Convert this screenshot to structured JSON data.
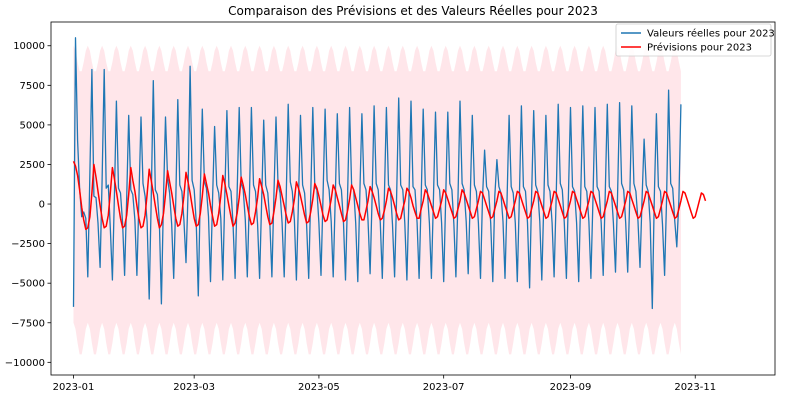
{
  "chart_data": {
    "type": "line",
    "title": "Comparaison des Prévisions et des Valeurs Réelles pour 2023",
    "xlabel": "",
    "ylabel": "",
    "x_range": [
      "2022-12-21",
      "2023-12-10"
    ],
    "ylim": [
      -10800,
      11500
    ],
    "x_ticks": [
      "2023-01",
      "2023-03",
      "2023-05",
      "2023-07",
      "2023-09",
      "2023-11"
    ],
    "x_tick_dates": [
      "2023-01-01",
      "2023-03-01",
      "2023-05-01",
      "2023-07-01",
      "2023-09-01",
      "2023-11-01"
    ],
    "y_ticks": [
      -10000,
      -7500,
      -5000,
      -2500,
      0,
      2500,
      5000,
      7500,
      10000
    ],
    "grid": false,
    "legend": {
      "position": "top-right"
    },
    "series": [
      {
        "name": "Valeurs réelles pour 2023",
        "color": "#1f77b4",
        "start_date": "2023-01-01",
        "step_days": 1,
        "values": [
          -6500,
          10500,
          4000,
          1000,
          -800,
          -500,
          -900,
          -4600,
          2000,
          8500,
          500,
          400,
          -1200,
          -4000,
          1500,
          8500,
          1000,
          1200,
          -1500,
          -4800,
          500,
          6500,
          1000,
          700,
          -1200,
          -4500,
          400,
          5600,
          900,
          600,
          -1000,
          -4500,
          300,
          5500,
          1300,
          500,
          -1100,
          -6000,
          200,
          7800,
          900,
          600,
          -1200,
          -6300,
          400,
          5500,
          1600,
          700,
          -1300,
          -4700,
          300,
          6600,
          1200,
          800,
          -1000,
          -3700,
          600,
          8700,
          1500,
          900,
          -1100,
          -5800,
          700,
          6000,
          1400,
          1000,
          -800,
          -4900,
          400,
          4900,
          1200,
          700,
          -900,
          -4800,
          500,
          5900,
          1100,
          800,
          -1200,
          -4700,
          600,
          6100,
          1300,
          900,
          -1000,
          -4600,
          400,
          6100,
          1200,
          800,
          -1300,
          -4700,
          300,
          5300,
          1200,
          700,
          -1100,
          -4600,
          500,
          5500,
          1300,
          700,
          -1200,
          -4600,
          400,
          6300,
          1400,
          800,
          -1000,
          -4800,
          300,
          5600,
          1200,
          700,
          -1300,
          -4700,
          500,
          6100,
          1100,
          900,
          -1200,
          -4500,
          400,
          6000,
          1500,
          900,
          -1100,
          -4600,
          500,
          5700,
          1300,
          900,
          -1200,
          -4800,
          600,
          6100,
          1200,
          900,
          -1200,
          -4900,
          500,
          5700,
          1300,
          900,
          -1000,
          -4400,
          400,
          6200,
          1300,
          900,
          -1200,
          -4700,
          500,
          6100,
          1200,
          900,
          -1300,
          -4600,
          400,
          6700,
          1200,
          900,
          -1200,
          -4800,
          300,
          6500,
          1100,
          900,
          -1200,
          -4700,
          400,
          6000,
          1200,
          900,
          -1200,
          -4700,
          500,
          5800,
          1200,
          900,
          -1200,
          -4900,
          400,
          5800,
          1300,
          900,
          -1300,
          -4600,
          400,
          6500,
          1300,
          900,
          -1100,
          -4400,
          500,
          5600,
          1200,
          800,
          -1200,
          -4700,
          400,
          3400,
          1100,
          800,
          -1200,
          -4900,
          500,
          2800,
          1100,
          700,
          -1100,
          -4700,
          400,
          5600,
          1100,
          700,
          -1200,
          -4900,
          500,
          6200,
          1100,
          800,
          -1200,
          -5300,
          500,
          5900,
          1200,
          800,
          -1100,
          -4800,
          400,
          5600,
          1200,
          800,
          -1200,
          -4600,
          500,
          6300,
          1300,
          900,
          -1200,
          -4700,
          500,
          6100,
          1100,
          800,
          -1200,
          -4900,
          500,
          6200,
          1100,
          800,
          -1100,
          -4700,
          400,
          6100,
          1100,
          800,
          -1200,
          -4500,
          500,
          6300,
          1100,
          800,
          -1200,
          -4300,
          400,
          6400,
          1300,
          900,
          -1200,
          -4300,
          500,
          6200,
          1300,
          800,
          -1100,
          -4000,
          400,
          4100,
          1200,
          800,
          -1200,
          -6600,
          400,
          5700,
          1100,
          800,
          -1300,
          -4500,
          400,
          7200,
          1300,
          1000,
          -1100,
          -2700,
          300,
          6300
        ]
      },
      {
        "name": "Prévisions pour 2023",
        "color": "#ff0000",
        "start_date": "2023-01-01",
        "step_days": 1,
        "values": [
          2700,
          2400,
          1800,
          900,
          -200,
          -1000,
          -1600,
          -1500,
          -800,
          700,
          2500,
          1700,
          800,
          -100,
          -900,
          -1500,
          -1400,
          -700,
          700,
          2300,
          1600,
          800,
          -100,
          -900,
          -1500,
          -1400,
          -700,
          600,
          2300,
          1500,
          800,
          -100,
          -900,
          -1500,
          -1400,
          -700,
          600,
          2200,
          1500,
          700,
          -100,
          -900,
          -1500,
          -1300,
          -600,
          600,
          2100,
          1400,
          700,
          -100,
          -900,
          -1400,
          -1300,
          -600,
          500,
          2000,
          1400,
          700,
          -100,
          -900,
          -1400,
          -1300,
          -600,
          500,
          1900,
          1300,
          700,
          -100,
          -800,
          -1400,
          -1300,
          -600,
          500,
          1800,
          1300,
          600,
          -100,
          -800,
          -1400,
          -1200,
          -600,
          400,
          1700,
          1200,
          600,
          -100,
          -800,
          -1300,
          -1200,
          -500,
          400,
          1600,
          1100,
          600,
          -100,
          -800,
          -1300,
          -1200,
          -500,
          400,
          1500,
          1100,
          500,
          -100,
          -700,
          -1200,
          -1100,
          -500,
          300,
          1400,
          1000,
          500,
          -100,
          -700,
          -1200,
          -1100,
          -500,
          300,
          1300,
          1000,
          500,
          -100,
          -700,
          -1100,
          -1000,
          -400,
          300,
          1200,
          900,
          400,
          -100,
          -600,
          -1100,
          -1000,
          -400,
          300,
          1200,
          900,
          400,
          -100,
          -600,
          -1000,
          -1000,
          -400,
          200,
          1100,
          800,
          400,
          -100,
          -600,
          -1000,
          -900,
          -400,
          200,
          1000,
          800,
          400,
          -100,
          -600,
          -1000,
          -900,
          -300,
          200,
          1000,
          800,
          400,
          -100,
          -500,
          -900,
          -900,
          -300,
          200,
          900,
          700,
          300,
          -100,
          -500,
          -900,
          -800,
          -300,
          200,
          900,
          700,
          300,
          -100,
          -500,
          -900,
          -800,
          -300,
          200,
          900,
          700,
          300,
          -100,
          -500,
          -900,
          -800,
          -300,
          200,
          800,
          700,
          300,
          -100,
          -500,
          -900,
          -800,
          -300,
          200,
          800,
          700,
          300,
          -100,
          -500,
          -900,
          -800,
          -300,
          200,
          800,
          700,
          300,
          -100,
          -500,
          -900,
          -800,
          -300,
          200,
          800,
          700,
          300,
          -100,
          -500,
          -900,
          -800,
          -300,
          200,
          800,
          700,
          300,
          -100,
          -500,
          -900,
          -800,
          -300,
          200,
          800,
          700,
          300,
          -100,
          -500,
          -900,
          -800,
          -300,
          200,
          800,
          700,
          300,
          -100,
          -500,
          -900,
          -800,
          -300,
          200,
          800,
          700,
          300,
          -100,
          -500,
          -900,
          -800,
          -300,
          200,
          800,
          700,
          300,
          -100,
          -500,
          -900,
          -800,
          -300,
          200,
          800,
          700,
          300,
          -100,
          -500,
          -900,
          -800,
          -300,
          200,
          800,
          700,
          300,
          -100,
          -500,
          -900,
          -800,
          -300,
          200,
          800,
          700,
          300,
          -100,
          -500,
          -900,
          -800,
          -300,
          200,
          700,
          600,
          200
        ]
      }
    ],
    "confidence_band": {
      "color": "#ffc0cb",
      "opacity": 0.4,
      "start_date": "2023-01-01",
      "step_days": 1,
      "period_days": 7,
      "upper_peak": 10000,
      "upper_trough": 8300,
      "lower_peak": -7500,
      "lower_trough": -9600
    }
  }
}
